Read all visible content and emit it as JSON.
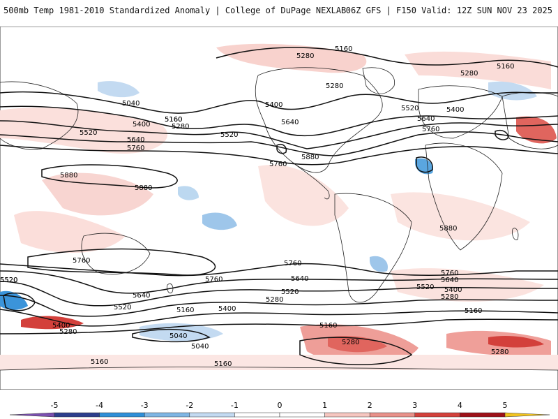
{
  "header": {
    "title": "500mb Temp 1981-2010 Standardized Anomaly | College of DuPage NEXLAB",
    "model_info": "06Z GFS | F150 Valid: 12Z SUN NOV 23 2025"
  },
  "map": {
    "contour_labels": [
      {
        "text": "5160"
      },
      {
        "text": "5280"
      },
      {
        "text": "5160"
      },
      {
        "text": "5280"
      },
      {
        "text": "5280"
      },
      {
        "text": "5040"
      },
      {
        "text": "5400"
      },
      {
        "text": "5160"
      },
      {
        "text": "5280"
      },
      {
        "text": "5400"
      },
      {
        "text": "5520"
      },
      {
        "text": "5520"
      },
      {
        "text": "5640"
      },
      {
        "text": "5640"
      },
      {
        "text": "5760"
      },
      {
        "text": "5520"
      },
      {
        "text": "5400"
      },
      {
        "text": "5640"
      },
      {
        "text": "5760"
      },
      {
        "text": "5760"
      },
      {
        "text": "5880"
      },
      {
        "text": "5880"
      },
      {
        "text": "5880"
      },
      {
        "text": "5880"
      },
      {
        "text": "5760"
      },
      {
        "text": "5760"
      },
      {
        "text": "5760"
      },
      {
        "text": "5640"
      },
      {
        "text": "5520"
      },
      {
        "text": "5640"
      },
      {
        "text": "5520"
      },
      {
        "text": "5400"
      },
      {
        "text": "5280"
      },
      {
        "text": "5640"
      },
      {
        "text": "5760"
      },
      {
        "text": "5520"
      },
      {
        "text": "5400"
      },
      {
        "text": "5280"
      },
      {
        "text": "5160"
      },
      {
        "text": "5520"
      },
      {
        "text": "5400"
      },
      {
        "text": "5280"
      },
      {
        "text": "5160"
      },
      {
        "text": "5040"
      },
      {
        "text": "5040"
      },
      {
        "text": "5160"
      },
      {
        "text": "5160"
      },
      {
        "text": "5280"
      },
      {
        "text": "5280"
      },
      {
        "text": "5160"
      },
      {
        "text": "5520"
      },
      {
        "text": "5160"
      }
    ]
  },
  "colorbar": {
    "ticks": [
      "-5",
      "-4",
      "-3",
      "-2",
      "-1",
      "0",
      "1",
      "2",
      "3",
      "4",
      "5"
    ],
    "colors": [
      "#7b4fb0",
      "#2c3e8c",
      "#2f8fd8",
      "#7fb6e4",
      "#c3daf1",
      "#ffffff",
      "#ffffff",
      "#f6c6c0",
      "#e9918a",
      "#d3403b",
      "#9e1018",
      "#f2c31e"
    ]
  }
}
